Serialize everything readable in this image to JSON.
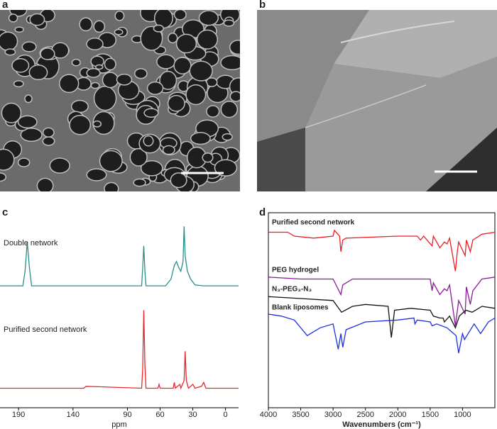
{
  "panel_labels": [
    "a",
    "b",
    "c",
    "d"
  ],
  "chart_data": [
    {
      "type": "line",
      "xlabel": "ppm",
      "xlim": [
        207,
        -12
      ],
      "ylim": [
        0,
        100
      ],
      "xticks": [
        190,
        140,
        90,
        60,
        30,
        0
      ],
      "box": false,
      "series": [
        {
          "name": "Double network",
          "color": "#2a8f8c",
          "x": [
            207,
            186,
            184,
            182,
            180,
            178,
            120,
            77,
            76,
            75,
            74,
            73,
            55,
            50,
            47,
            45,
            43,
            41,
            39,
            38,
            37,
            35,
            32,
            28,
            20,
            -12
          ],
          "values": [
            62.5,
            62.5,
            70,
            85,
            72,
            62.5,
            62.5,
            62.5,
            72,
            83,
            70,
            62.5,
            62.5,
            66,
            73,
            75,
            72,
            70,
            75,
            93,
            78,
            70,
            66,
            63,
            62.5,
            62.5
          ]
        },
        {
          "name": "Purified second network",
          "color": "#e8262b",
          "x": [
            207,
            130,
            128,
            77,
            76,
            75,
            74,
            73,
            62,
            61,
            60,
            48,
            47,
            46,
            42,
            41,
            38,
            37,
            36,
            34,
            30,
            28,
            22,
            20,
            18,
            -12
          ],
          "values": [
            10,
            10,
            11,
            10,
            20,
            50,
            22,
            10,
            10,
            12,
            10,
            10,
            13,
            10,
            12,
            10,
            14,
            29,
            14,
            10,
            12,
            10,
            11,
            13,
            10,
            10
          ]
        }
      ]
    },
    {
      "type": "line",
      "xlabel": "Wavenumbers (cm⁻¹)",
      "xlim": [
        4000,
        500
      ],
      "ylim": [
        0,
        100
      ],
      "xticks": [
        4000,
        3500,
        3000,
        2500,
        2000,
        1500,
        1000
      ],
      "box": true,
      "series": [
        {
          "name": "Purified second network",
          "color": "#ee1c24",
          "x": [
            4000,
            3700,
            3600,
            3300,
            3000,
            2980,
            2900,
            2880,
            2850,
            2800,
            2000,
            1700,
            1650,
            1600,
            1470,
            1450,
            1350,
            1280,
            1240,
            1200,
            1110,
            1080,
            1060,
            960,
            940,
            880,
            840,
            700,
            500
          ],
          "values": [
            90,
            90,
            88,
            87,
            88,
            91,
            88,
            80,
            86,
            87,
            88,
            88,
            86,
            88,
            83,
            88,
            82,
            85,
            84,
            87,
            70,
            80,
            85,
            78,
            86,
            80,
            86,
            89,
            90
          ]
        },
        {
          "name": "PEG hydrogel",
          "color": "#8b1a9a",
          "x": [
            4000,
            3500,
            3000,
            2880,
            2850,
            2700,
            1500,
            1470,
            1450,
            1350,
            1280,
            1240,
            1200,
            1110,
            1060,
            960,
            940,
            880,
            840,
            700,
            500
          ],
          "values": [
            67,
            66,
            66,
            58,
            63,
            66,
            66,
            60,
            64,
            58,
            61,
            60,
            63,
            42,
            55,
            48,
            62,
            53,
            60,
            66,
            67
          ]
        },
        {
          "name": "N₃-PEG₃-N₃",
          "color": "#111111",
          "x": [
            4000,
            3500,
            3000,
            2870,
            2700,
            2500,
            2150,
            2100,
            2050,
            1800,
            1500,
            1450,
            1350,
            1300,
            1280,
            1200,
            1110,
            1050,
            950,
            850,
            700,
            500
          ],
          "values": [
            57,
            56,
            55,
            49,
            52,
            53,
            52,
            36,
            50,
            51,
            50,
            47,
            46,
            46,
            44,
            47,
            41,
            47,
            50,
            49,
            52,
            51
          ]
        },
        {
          "name": "Blank liposomes",
          "color": "#1c2ee0",
          "x": [
            4000,
            3800,
            3600,
            3400,
            3200,
            3000,
            2920,
            2880,
            2850,
            2800,
            2500,
            2000,
            1750,
            1735,
            1700,
            1500,
            1470,
            1400,
            1240,
            1100,
            1060,
            1000,
            970,
            820,
            720,
            600,
            500
          ],
          "values": [
            48,
            47,
            45,
            37,
            41,
            43,
            30,
            38,
            31,
            40,
            44,
            45,
            46,
            43,
            45,
            44,
            42,
            43,
            41,
            37,
            28,
            38,
            35,
            43,
            38,
            44,
            46
          ]
        }
      ]
    }
  ]
}
